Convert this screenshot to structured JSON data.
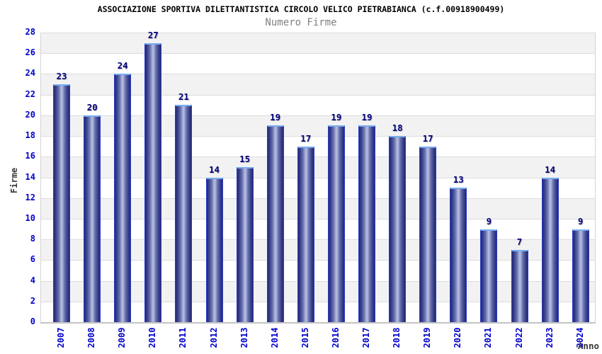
{
  "chart_data": {
    "type": "bar",
    "title": "ASSOCIAZIONE SPORTIVA DILETTANTISTICA CIRCOLO VELICO PIETRABIANCA (c.f.00918900499)",
    "subtitle": "Numero Firme",
    "xlabel": "Anno",
    "ylabel": "Firme",
    "categories": [
      "2007",
      "2008",
      "2009",
      "2010",
      "2011",
      "2012",
      "2013",
      "2014",
      "2015",
      "2016",
      "2017",
      "2018",
      "2019",
      "2020",
      "2021",
      "2022",
      "2023",
      "2024"
    ],
    "values": [
      23,
      20,
      24,
      27,
      21,
      14,
      15,
      19,
      17,
      19,
      19,
      18,
      17,
      13,
      9,
      7,
      14,
      9
    ],
    "ylim": [
      0,
      28
    ],
    "ytick_step": 2,
    "grid": "alternating horizontal bands every 2 units, light gridlines",
    "legend": "none",
    "colors": {
      "title": "#000000",
      "subtitle": "#808080",
      "axis_title": "#3a3a3a",
      "tick_label": "#0000cc",
      "value_label": "#00007d",
      "band_light": "#f2f2f2",
      "band_white": "#ffffff",
      "grid_line": "#dcdcdc",
      "axis_line": "#c4c4c4",
      "bar_dark": "#23296e",
      "bar_light": "#b3bbe0",
      "bar_side_border": "#2c3cc8",
      "bar_top_border": "#78acf0"
    }
  }
}
